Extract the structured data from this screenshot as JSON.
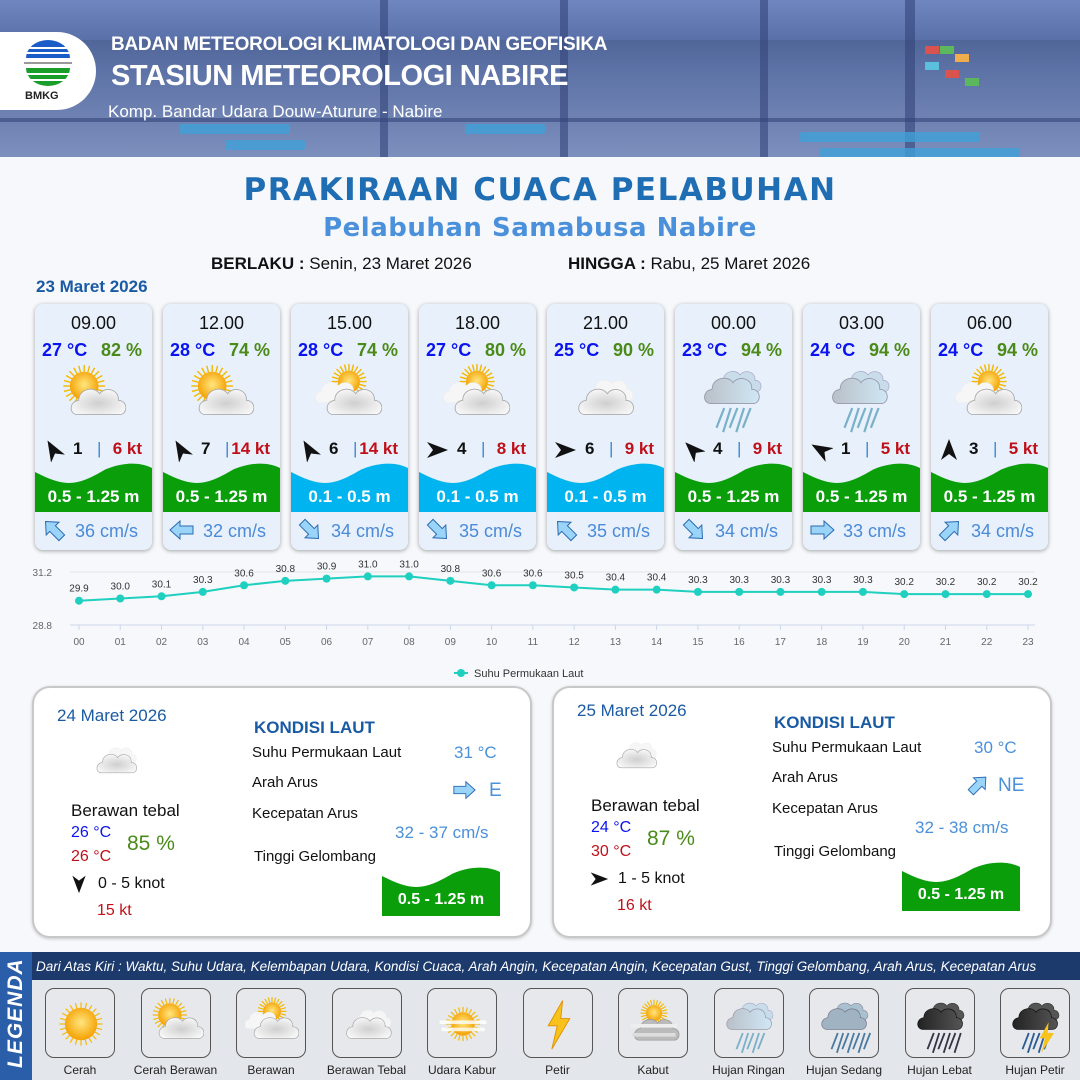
{
  "header": {
    "agency": "BADAN METEOROLOGI KLIMATOLOGI DAN GEOFISIKA",
    "station": "STASIUN METEOROLOGI NABIRE",
    "address": "Komp. Bandar Udara Douw-Aturure - Nabire",
    "logo_text": "BMKG"
  },
  "title": "PRAKIRAAN CUACA PELABUHAN",
  "subtitle": "Pelabuhan Samabusa Nabire",
  "validity": {
    "from_label": "BERLAKU :",
    "from_value": "Senin, 23 Maret 2026",
    "to_label": "HINGGA :",
    "to_value": "Rabu, 25 Maret 2026"
  },
  "day1_label": "23 Maret 2026",
  "colors": {
    "wave_green": "#0a9e0a",
    "wave_blue": "#00b4f0",
    "temp": "#0a14f0",
    "humidity": "#4a8a18",
    "gust": "#c0101a",
    "current": "#4a8ad8",
    "title": "#1f6db3"
  },
  "cards": [
    {
      "time": "09.00",
      "temp": "27 °C",
      "hum": "82 %",
      "icon": "cerah-berawan",
      "wind_dir_deg": 330,
      "wind_speed": "1",
      "gust": "6 kt",
      "wave": "0.5 - 1.25 m",
      "wave_class": "green",
      "current_dir_deg": 315,
      "current": "36 cm/s"
    },
    {
      "time": "12.00",
      "temp": "28 °C",
      "hum": "74 %",
      "icon": "cerah-berawan",
      "wind_dir_deg": 330,
      "wind_speed": "7",
      "gust": "14 kt",
      "wave": "0.5 - 1.25 m",
      "wave_class": "green",
      "current_dir_deg": 270,
      "current": "32 cm/s"
    },
    {
      "time": "15.00",
      "temp": "28 °C",
      "hum": "74 %",
      "icon": "berawan",
      "wind_dir_deg": 330,
      "wind_speed": "6",
      "gust": "14 kt",
      "wave": "0.1 - 0.5 m",
      "wave_class": "blue",
      "current_dir_deg": 135,
      "current": "34 cm/s"
    },
    {
      "time": "18.00",
      "temp": "27 °C",
      "hum": "80 %",
      "icon": "berawan",
      "wind_dir_deg": 90,
      "wind_speed": "4",
      "gust": "8 kt",
      "wave": "0.1 - 0.5 m",
      "wave_class": "blue",
      "current_dir_deg": 135,
      "current": "35 cm/s"
    },
    {
      "time": "21.00",
      "temp": "25 °C",
      "hum": "90 %",
      "icon": "berawan-tebal",
      "wind_dir_deg": 90,
      "wind_speed": "6",
      "gust": "9 kt",
      "wave": "0.1 - 0.5 m",
      "wave_class": "blue",
      "current_dir_deg": 315,
      "current": "35 cm/s"
    },
    {
      "time": "00.00",
      "temp": "23 °C",
      "hum": "94 %",
      "icon": "hujan-ringan",
      "wind_dir_deg": 315,
      "wind_speed": "4",
      "gust": "9 kt",
      "wave": "0.5 - 1.25 m",
      "wave_class": "green",
      "current_dir_deg": 135,
      "current": "34 cm/s"
    },
    {
      "time": "03.00",
      "temp": "24 °C",
      "hum": "94 %",
      "icon": "hujan-ringan",
      "wind_dir_deg": 300,
      "wind_speed": "1",
      "gust": "5 kt",
      "wave": "0.5 - 1.25 m",
      "wave_class": "green",
      "current_dir_deg": 90,
      "current": "33 cm/s"
    },
    {
      "time": "06.00",
      "temp": "24 °C",
      "hum": "94 %",
      "icon": "berawan",
      "wind_dir_deg": 0,
      "wind_speed": "3",
      "gust": "5 kt",
      "wave": "0.5 - 1.25 m",
      "wave_class": "green",
      "current_dir_deg": 45,
      "current": "34 cm/s"
    }
  ],
  "chart_data": {
    "type": "line",
    "x": [
      "00",
      "01",
      "02",
      "03",
      "04",
      "05",
      "06",
      "07",
      "08",
      "09",
      "10",
      "11",
      "12",
      "13",
      "14",
      "15",
      "16",
      "17",
      "18",
      "19",
      "20",
      "21",
      "22",
      "23"
    ],
    "series": [
      {
        "name": "Suhu Permukaan Laut",
        "values": [
          29.9,
          30.0,
          30.1,
          30.3,
          30.6,
          30.8,
          30.9,
          31.0,
          31.0,
          30.8,
          30.6,
          30.6,
          30.5,
          30.4,
          30.4,
          30.3,
          30.3,
          30.3,
          30.3,
          30.3,
          30.2,
          30.2,
          30.2,
          30.2
        ],
        "color": "#1fcfbf"
      }
    ],
    "y_ticks": [
      "31.2",
      "28.8"
    ],
    "ylim": [
      28.8,
      31.2
    ],
    "grid": true,
    "legend": "bottom"
  },
  "days": [
    {
      "date": "24 Maret 2026",
      "condition": "Berawan tebal",
      "icon": "berawan-tebal",
      "tmin": "26 °C",
      "tmax": "26 °C",
      "hum": "85 %",
      "wind_dir_deg": 180,
      "wind": "0  - 5 knot",
      "gust": "15 kt",
      "sea": {
        "heading": "KONDISI LAUT",
        "sst_label": "Suhu Permukaan Laut",
        "sst": "31 °C",
        "dir_label": "Arah Arus",
        "dir": "E",
        "current_dir_deg": 90,
        "speed_label": "Kecepatan Arus",
        "speed": "32 - 37 cm/s",
        "wave_label": "Tinggi Gelombang",
        "wave": "0.5 - 1.25 m"
      }
    },
    {
      "date": "25 Maret 2026",
      "condition": "Berawan tebal",
      "icon": "berawan-tebal",
      "tmin": "24 °C",
      "tmax": "30 °C",
      "hum": "87 %",
      "wind_dir_deg": 90,
      "wind": "1  - 5 knot",
      "gust": "16 kt",
      "sea": {
        "heading": "KONDISI LAUT",
        "sst_label": "Suhu Permukaan Laut",
        "sst": "30 °C",
        "dir_label": "Arah Arus",
        "dir": "NE",
        "current_dir_deg": 45,
        "speed_label": "Kecepatan Arus",
        "speed": "32 - 38 cm/s",
        "wave_label": "Tinggi Gelombang",
        "wave": "0.5 - 1.25 m"
      }
    }
  ],
  "legend": {
    "title": "LEGENDA",
    "description": "Dari Atas Kiri : Waktu, Suhu Udara, Kelembapan Udara, Kondisi Cuaca, Arah Angin, Kecepatan Angin, Kecepatan Gust, Tinggi Gelombang, Arah Arus, Kecepatan Arus",
    "items": [
      {
        "label": "Cerah",
        "icon": "cerah"
      },
      {
        "label": "Cerah Berawan",
        "icon": "cerah-berawan"
      },
      {
        "label": "Berawan",
        "icon": "berawan"
      },
      {
        "label": "Berawan Tebal",
        "icon": "berawan-tebal"
      },
      {
        "label": "Udara Kabur",
        "icon": "udara-kabur"
      },
      {
        "label": "Petir",
        "icon": "petir"
      },
      {
        "label": "Kabut",
        "icon": "kabut"
      },
      {
        "label": "Hujan Ringan",
        "icon": "hujan-ringan"
      },
      {
        "label": "Hujan Sedang",
        "icon": "hujan-sedang"
      },
      {
        "label": "Hujan Lebat",
        "icon": "hujan-lebat"
      },
      {
        "label": "Hujan Petir",
        "icon": "hujan-petir"
      }
    ]
  }
}
